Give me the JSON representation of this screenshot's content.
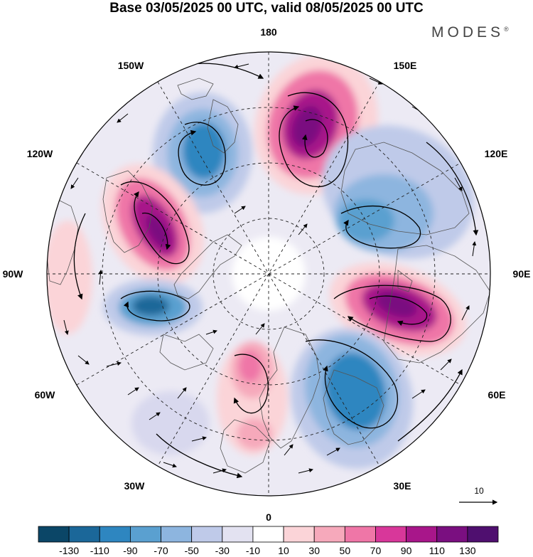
{
  "title": "Base 03/05/2025 00 UTC, valid 08/05/2025 00 UTC",
  "brand": "MODES",
  "brand_mark": "®",
  "lon_labels": {
    "deg180": "180",
    "deg150E": "150E",
    "deg120E": "120E",
    "deg90E": "90E",
    "deg60E": "60E",
    "deg30E": "30E",
    "deg0": "0",
    "deg30W": "30W",
    "deg60W": "60W",
    "deg90W": "90W",
    "deg120W": "120W",
    "deg150W": "150W"
  },
  "vector_scale": {
    "label": "10"
  },
  "colorbar": {
    "ticks": [
      "-130",
      "-110",
      "-90",
      "-70",
      "-50",
      "-30",
      "-10",
      "10",
      "30",
      "50",
      "70",
      "90",
      "110",
      "130"
    ],
    "colors": [
      "#0b4667",
      "#1b6799",
      "#2e86c0",
      "#5aa0d0",
      "#8db5df",
      "#bfcae9",
      "#e3e2f1",
      "#ffffff",
      "#fbd4d8",
      "#f6a9bb",
      "#ef76a7",
      "#d8379a",
      "#a8168a",
      "#7a0f80",
      "#4f0f6f"
    ]
  },
  "map_style": {
    "positive_color": "#d8379a",
    "negative_color": "#2e86c0",
    "coast_color": "#555555",
    "arrow_color": "#000000"
  }
}
